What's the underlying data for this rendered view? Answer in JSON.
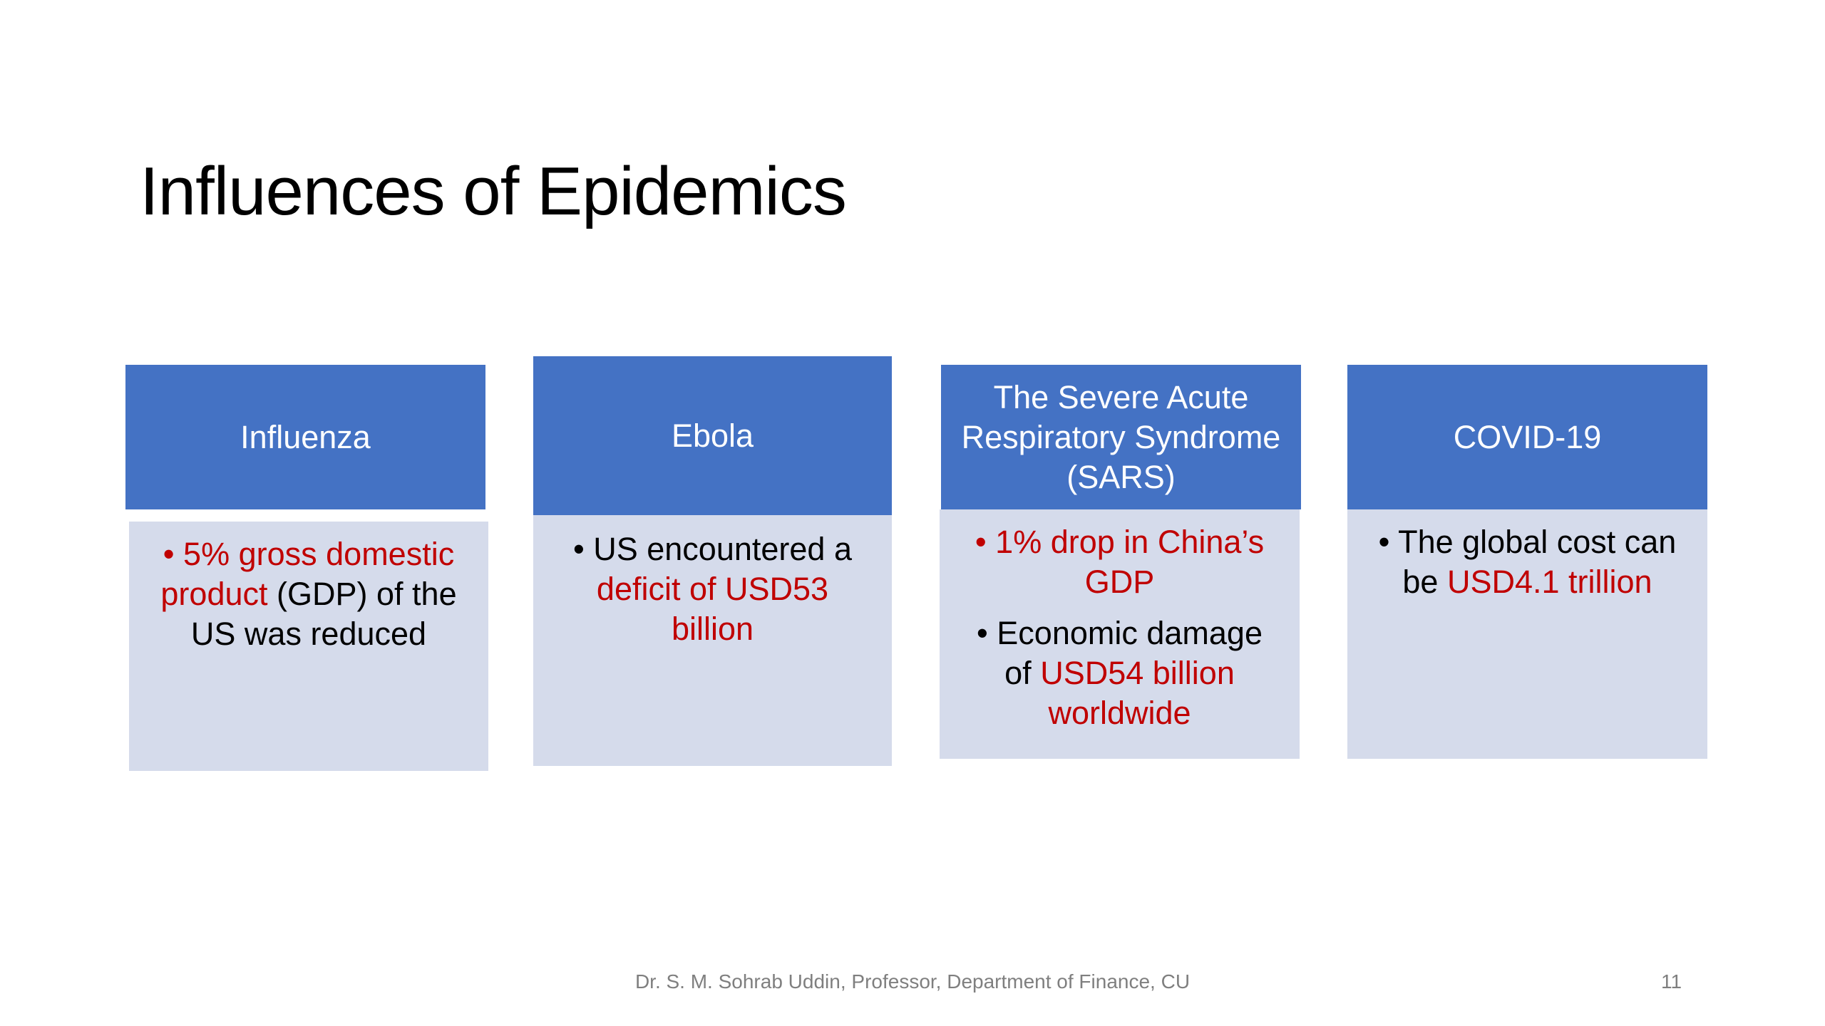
{
  "slide": {
    "title": "Influences of Epidemics",
    "footer": "Dr. S. M. Sohrab Uddin, Professor, Department of Finance, CU",
    "page_number": "11"
  },
  "cards": [
    {
      "header": "Influenza",
      "bullets": [
        {
          "segments": [
            {
              "text": "• 5% gross domestic product",
              "color": "red"
            },
            {
              "text": " (GDP) of the US was reduced",
              "color": "black"
            }
          ]
        }
      ]
    },
    {
      "header": "Ebola",
      "bullets": [
        {
          "segments": [
            {
              "text": "• US encountered a ",
              "color": "black"
            },
            {
              "text": "deficit of USD53 billion",
              "color": "red"
            }
          ]
        }
      ]
    },
    {
      "header": "The Severe Acute Respiratory Syndrome (SARS)",
      "bullets": [
        {
          "segments": [
            {
              "text": "• 1% drop in China’s GDP",
              "color": "red"
            }
          ]
        },
        {
          "segments": [
            {
              "text": "• Economic damage of ",
              "color": "black"
            },
            {
              "text": "USD54 billion worldwide",
              "color": "red"
            }
          ]
        }
      ]
    },
    {
      "header": "COVID-19",
      "bullets": [
        {
          "segments": [
            {
              "text": "• The global cost can be ",
              "color": "black"
            },
            {
              "text": "USD4.1 trillion",
              "color": "red"
            }
          ]
        }
      ]
    }
  ],
  "colors": {
    "header_fill": "#4472c4",
    "body_fill": "#d5dbeb",
    "highlight_text": "#c00000"
  }
}
